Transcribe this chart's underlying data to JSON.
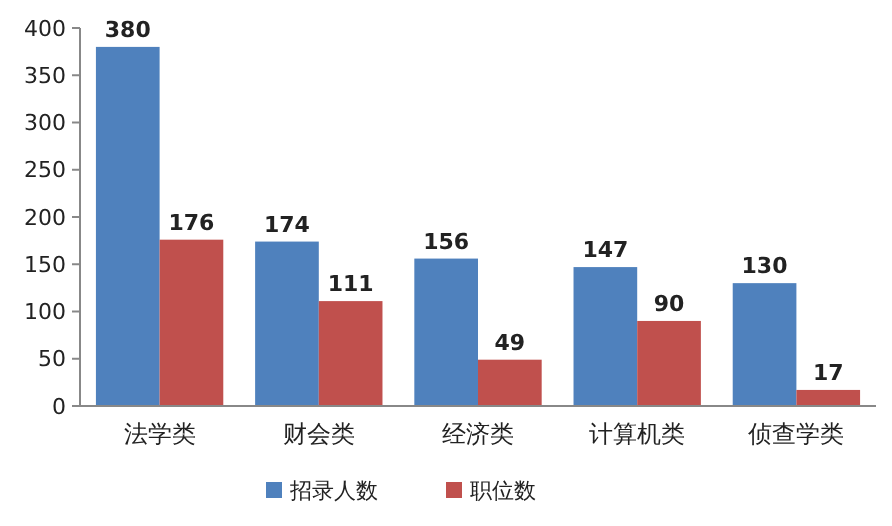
{
  "chart_data": {
    "type": "bar",
    "categories": [
      "法学类",
      "财会类",
      "经济类",
      "计算机类",
      "侦查学类"
    ],
    "series": [
      {
        "name": "招录人数",
        "color": "#4f81bd",
        "values": [
          380,
          174,
          156,
          147,
          130
        ]
      },
      {
        "name": "职位数",
        "color": "#c0504d",
        "values": [
          176,
          111,
          49,
          90,
          17
        ]
      }
    ],
    "ylim": [
      0,
      400
    ],
    "yticks": [
      0,
      50,
      100,
      150,
      200,
      250,
      300,
      350,
      400
    ],
    "grid": false,
    "legend": "bottom",
    "data_labels": true
  }
}
